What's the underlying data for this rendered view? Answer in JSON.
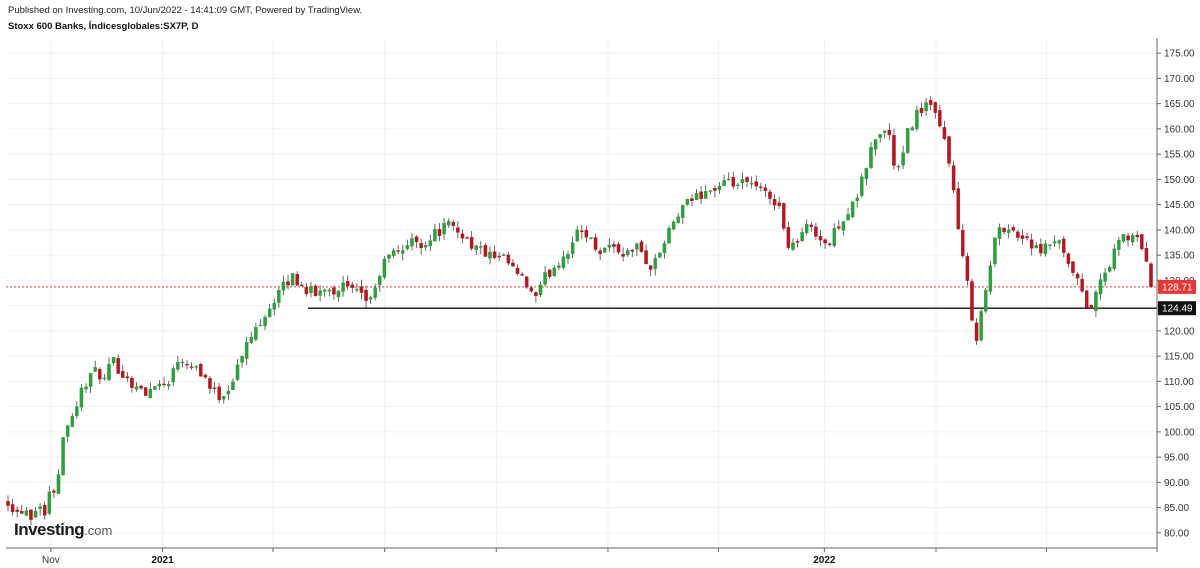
{
  "header": {
    "published": "Published on Investing.com, 10/Jun/2022 - 14:41:09 GMT, Powered by TradingView.",
    "title": "Stoxx 600 Banks, Índicesglobales:SX7P, D"
  },
  "logo": {
    "brand": "Investing",
    "suffix": ".com"
  },
  "colors": {
    "up": "#2e9e3e",
    "down": "#b2181f",
    "current": "#e53935",
    "support": "#111111",
    "grid": "#f0f0f0"
  },
  "chart_data": {
    "type": "candlestick",
    "ylim": [
      77,
      178
    ],
    "y_ticks": [
      "175.00",
      "170.00",
      "165.00",
      "160.00",
      "155.00",
      "150.00",
      "145.00",
      "140.00",
      "135.00",
      "130.00",
      "125.00",
      "120.00",
      "115.00",
      "110.00",
      "105.00",
      "100.00",
      "95.00",
      "90.00",
      "85.00",
      "80.00"
    ],
    "x_labels": [
      {
        "text": "Nov",
        "bold": false,
        "pos": 0.039
      },
      {
        "text": "2021",
        "bold": true,
        "pos": 0.136
      },
      {
        "text": "2022",
        "bold": true,
        "pos": 0.711
      }
    ],
    "x_gridlines": [
      0.039,
      0.136,
      0.232,
      0.329,
      0.426,
      0.523,
      0.619,
      0.711,
      0.808,
      0.904,
      1.0
    ],
    "current_price": {
      "value": 128.71,
      "label": "128.71"
    },
    "support_level": {
      "value": 124.49,
      "label": "124.49"
    },
    "path_closes": [
      [
        0,
        86.5
      ],
      [
        8,
        84
      ],
      [
        16,
        85
      ],
      [
        24,
        83
      ],
      [
        30,
        87
      ],
      [
        34,
        82.5
      ],
      [
        40,
        88
      ],
      [
        46,
        89
      ],
      [
        52,
        98
      ],
      [
        58,
        103
      ],
      [
        64,
        104
      ],
      [
        70,
        108
      ],
      [
        78,
        111
      ],
      [
        86,
        112
      ],
      [
        92,
        110
      ],
      [
        100,
        114
      ],
      [
        108,
        112
      ],
      [
        116,
        110
      ],
      [
        124,
        109
      ],
      [
        132,
        107
      ],
      [
        140,
        110
      ],
      [
        148,
        109
      ],
      [
        156,
        111
      ],
      [
        164,
        115
      ],
      [
        172,
        114
      ],
      [
        180,
        113
      ],
      [
        188,
        111
      ],
      [
        196,
        108
      ],
      [
        204,
        107
      ],
      [
        212,
        109
      ],
      [
        220,
        113
      ],
      [
        228,
        117
      ],
      [
        236,
        120
      ],
      [
        244,
        123
      ],
      [
        252,
        125
      ],
      [
        260,
        128
      ],
      [
        266,
        129
      ],
      [
        272,
        131
      ],
      [
        280,
        129
      ],
      [
        288,
        128
      ],
      [
        296,
        127
      ],
      [
        304,
        129
      ],
      [
        312,
        128
      ],
      [
        320,
        129
      ],
      [
        328,
        128
      ],
      [
        336,
        127
      ],
      [
        344,
        126
      ],
      [
        352,
        128
      ],
      [
        358,
        133
      ],
      [
        366,
        135
      ],
      [
        374,
        136
      ],
      [
        382,
        137
      ],
      [
        390,
        138
      ],
      [
        398,
        137
      ],
      [
        406,
        139
      ],
      [
        414,
        140
      ],
      [
        420,
        141
      ],
      [
        428,
        140
      ],
      [
        436,
        139
      ],
      [
        444,
        137
      ],
      [
        452,
        136
      ],
      [
        460,
        135
      ],
      [
        468,
        134
      ],
      [
        476,
        134
      ],
      [
        484,
        132
      ],
      [
        492,
        130
      ],
      [
        500,
        128
      ],
      [
        506,
        126
      ],
      [
        512,
        130
      ],
      [
        520,
        132
      ],
      [
        528,
        134
      ],
      [
        536,
        136
      ],
      [
        544,
        139
      ],
      [
        552,
        140
      ],
      [
        560,
        137
      ],
      [
        568,
        136
      ],
      [
        576,
        137
      ],
      [
        584,
        136
      ],
      [
        592,
        135
      ],
      [
        600,
        137
      ],
      [
        608,
        135
      ],
      [
        616,
        132
      ],
      [
        622,
        135
      ],
      [
        630,
        138
      ],
      [
        638,
        142
      ],
      [
        646,
        144
      ],
      [
        654,
        146
      ],
      [
        662,
        147
      ],
      [
        670,
        148
      ],
      [
        678,
        148
      ],
      [
        686,
        149
      ],
      [
        694,
        149
      ],
      [
        702,
        149
      ],
      [
        710,
        149
      ],
      [
        718,
        148
      ],
      [
        726,
        147
      ],
      [
        732,
        146
      ],
      [
        738,
        145
      ],
      [
        744,
        138
      ],
      [
        750,
        137
      ],
      [
        756,
        138
      ],
      [
        762,
        140
      ],
      [
        770,
        141
      ],
      [
        778,
        138
      ],
      [
        786,
        137
      ],
      [
        794,
        141
      ],
      [
        802,
        143
      ],
      [
        810,
        145
      ],
      [
        818,
        150
      ],
      [
        826,
        156
      ],
      [
        834,
        159
      ],
      [
        842,
        160
      ],
      [
        850,
        151
      ],
      [
        856,
        154
      ],
      [
        862,
        160
      ],
      [
        870,
        163
      ],
      [
        878,
        165
      ],
      [
        884,
        164
      ],
      [
        890,
        161
      ],
      [
        896,
        158
      ],
      [
        902,
        153
      ],
      [
        908,
        142
      ],
      [
        914,
        134
      ],
      [
        920,
        127
      ],
      [
        926,
        118
      ],
      [
        932,
        124
      ],
      [
        938,
        130
      ],
      [
        944,
        138
      ],
      [
        950,
        140
      ],
      [
        956,
        141
      ],
      [
        962,
        140
      ],
      [
        968,
        138
      ],
      [
        974,
        139
      ],
      [
        980,
        137
      ],
      [
        988,
        135
      ],
      [
        996,
        137
      ],
      [
        1004,
        138
      ],
      [
        1010,
        135
      ],
      [
        1016,
        132
      ],
      [
        1022,
        131
      ],
      [
        1028,
        127
      ],
      [
        1034,
        124
      ],
      [
        1040,
        126
      ],
      [
        1046,
        130
      ],
      [
        1052,
        132
      ],
      [
        1058,
        135
      ],
      [
        1064,
        138
      ],
      [
        1070,
        139
      ],
      [
        1076,
        138
      ],
      [
        1082,
        138
      ],
      [
        1088,
        136
      ],
      [
        1094,
        128.71
      ]
    ]
  }
}
